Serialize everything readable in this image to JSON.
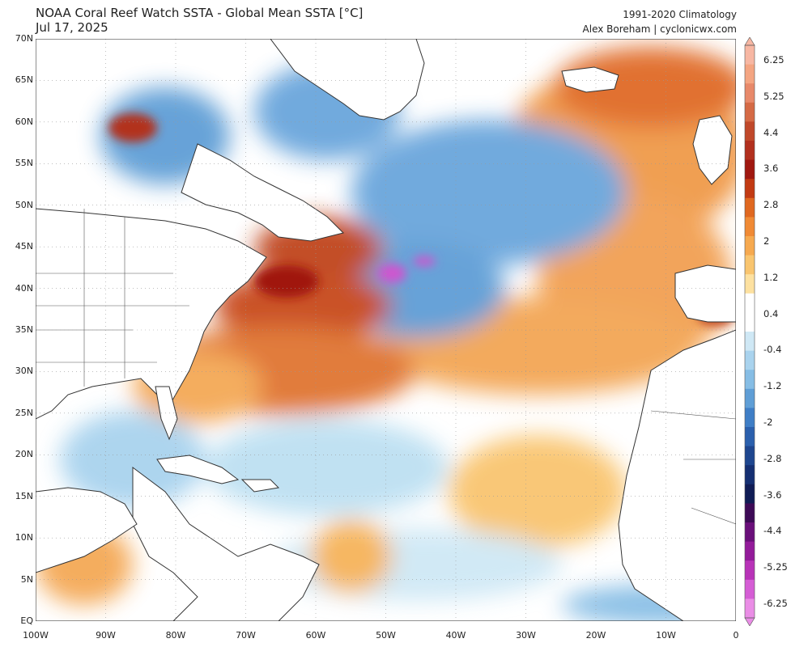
{
  "header": {
    "title": "NOAA Coral Reef Watch SSTA - Global Mean SSTA [°C]",
    "date": "Jul 17, 2025",
    "climatology": "1991-2020 Climatology",
    "credit": "Alex Boreham | cyclonicwx.com"
  },
  "map": {
    "region": "North Atlantic",
    "lat_labels": [
      "70N",
      "65N",
      "60N",
      "55N",
      "50N",
      "45N",
      "40N",
      "35N",
      "30N",
      "25N",
      "20N",
      "15N",
      "10N",
      "5N",
      "EQ"
    ],
    "lon_labels": [
      "100W",
      "90W",
      "80W",
      "70W",
      "60W",
      "50W",
      "40W",
      "30W",
      "20W",
      "10W",
      "0"
    ],
    "lat_range": [
      0,
      70
    ],
    "lon_range": [
      -100,
      0
    ],
    "colors": {
      "land": "#ffffff",
      "ocean_neutral": "#ffffff",
      "border": "#333333",
      "gridline": "#999999"
    }
  },
  "colorbar": {
    "labels": [
      "6.25",
      "5.25",
      "4.4",
      "3.6",
      "2.8",
      "2",
      "1.2",
      "0.4",
      "-0.4",
      "-1.2",
      "-2",
      "-2.8",
      "-3.6",
      "-4.4",
      "-5.25",
      "-6.25"
    ],
    "colors": [
      "#f7b7a3",
      "#f4a582",
      "#e8896a",
      "#d56a45",
      "#c0482a",
      "#b2301e",
      "#a01810",
      "#c23a13",
      "#e06820",
      "#f08a35",
      "#f6a94f",
      "#f9c56f",
      "#fde1a0",
      "#ffffff",
      "#ffffff",
      "#cfe8f5",
      "#a9d3ee",
      "#86bde5",
      "#5f9ed6",
      "#3f7ec6",
      "#2b60ad",
      "#1e468f",
      "#152f72",
      "#101c55",
      "#3d0a56",
      "#6a0f7a",
      "#931b9a",
      "#b833b8",
      "#d55dd5",
      "#ea8de6"
    ]
  }
}
